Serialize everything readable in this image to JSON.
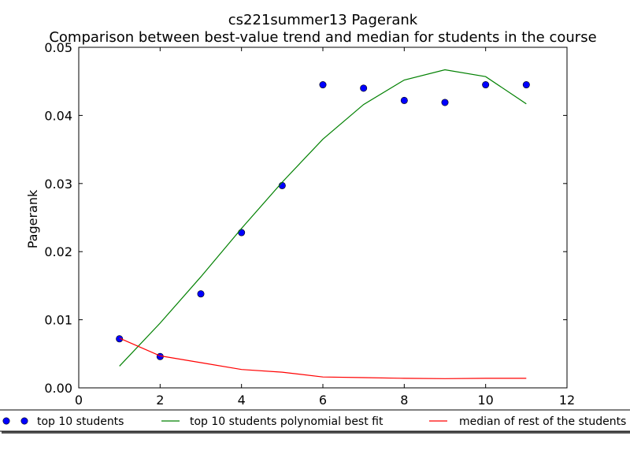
{
  "chart_data": {
    "type": "scatter",
    "title": "cs221summer13 Pagerank",
    "subtitle": "Comparison between best-value trend and median for students in the course",
    "xlabel": "",
    "ylabel": "Pagerank",
    "xlim": [
      0,
      12
    ],
    "ylim": [
      0,
      0.05
    ],
    "xticks": [
      "0",
      "2",
      "4",
      "6",
      "8",
      "10",
      "12"
    ],
    "yticks": [
      "0.00",
      "0.01",
      "0.02",
      "0.03",
      "0.04",
      "0.05"
    ],
    "grid": false,
    "legend_position": "below plot",
    "series": [
      {
        "name": "top 10 students",
        "kind": "scatter",
        "color": "#0000ff",
        "x": [
          1,
          2,
          3,
          4,
          5,
          6,
          7,
          8,
          9,
          10,
          11
        ],
        "y": [
          0.0072,
          0.0046,
          0.0138,
          0.0228,
          0.0297,
          0.0445,
          0.044,
          0.0422,
          0.0419,
          0.0445,
          0.0445
        ]
      },
      {
        "name": "top 10 students polynomial best fit",
        "kind": "line",
        "color": "#008000",
        "x": [
          1,
          2,
          3,
          4,
          5,
          6,
          7,
          8,
          9,
          10,
          11
        ],
        "y": [
          0.0032,
          0.0095,
          0.0163,
          0.0234,
          0.0302,
          0.0365,
          0.0416,
          0.0452,
          0.0467,
          0.0457,
          0.0417
        ]
      },
      {
        "name": "median of rest of the students",
        "kind": "line",
        "color": "#ff0000",
        "x": [
          1,
          2,
          3,
          4,
          5,
          6,
          7,
          8,
          9,
          10,
          11
        ],
        "y": [
          0.0073,
          0.0047,
          0.0037,
          0.0027,
          0.0023,
          0.0016,
          0.0015,
          0.0014,
          0.00135,
          0.0014,
          0.0014
        ]
      }
    ]
  }
}
